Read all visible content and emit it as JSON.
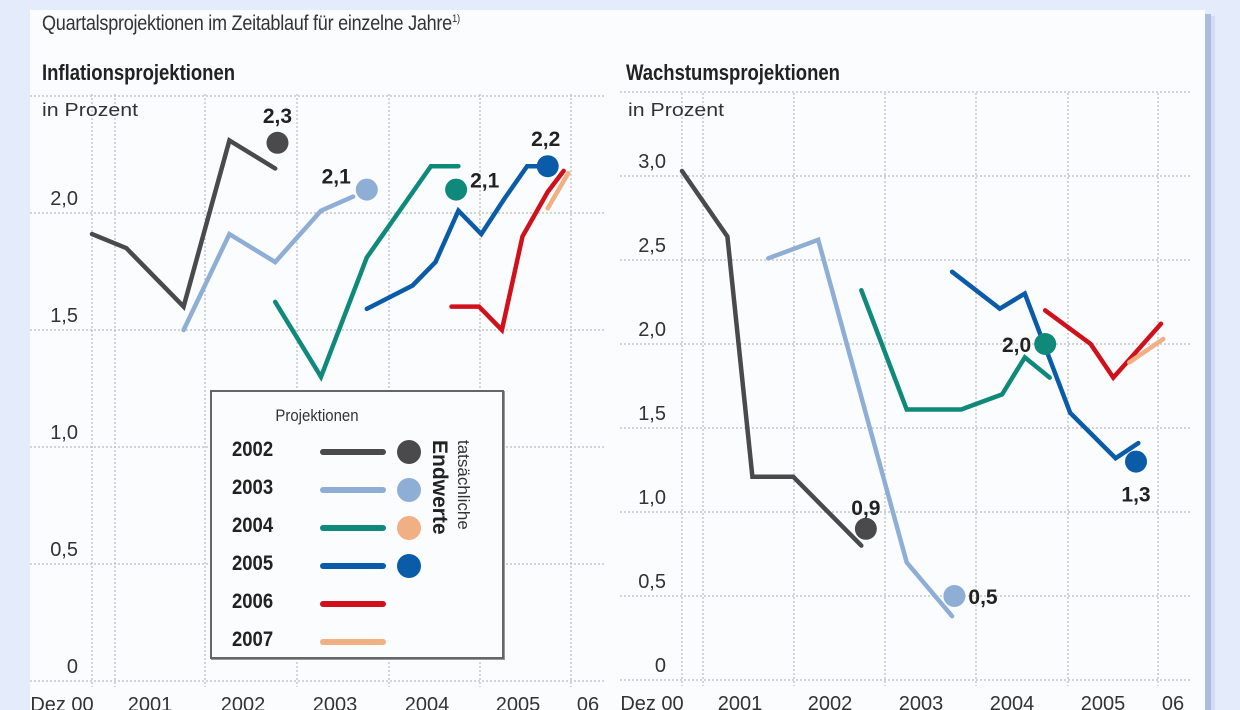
{
  "subtitle": "Quartalsprojektionen im Zeitablauf für einzelne Jahre",
  "subtitle_footnote": "1)",
  "colors": {
    "2002": "#4a4a4c",
    "2003": "#8eaed6",
    "2004": "#0f8a7a",
    "2005": "#0a5ca8",
    "2006": "#d0101a",
    "2007": "#f0b083",
    "grid": "#b8bcc4",
    "background": "#e4ecfb",
    "panel": "#fbfcfd"
  },
  "legend": {
    "title": "Projektionen",
    "vertical_label_1": "tatsächliche",
    "vertical_label_2": "Endwerte",
    "entries": [
      {
        "year": "2002",
        "line_color": "#4a4a4c",
        "dot_color": "#4a4a4c"
      },
      {
        "year": "2003",
        "line_color": "#8eaed6",
        "dot_color": "#8eaed6"
      },
      {
        "year": "2004",
        "line_color": "#0f8a7a",
        "dot_color": "#f0b083"
      },
      {
        "year": "2005",
        "line_color": "#0a5ca8",
        "dot_color": "#0a5ca8"
      },
      {
        "year": "2006",
        "line_color": "#d0101a",
        "dot_color": null
      },
      {
        "year": "2007",
        "line_color": "#f0b083",
        "dot_color": null
      }
    ]
  },
  "chart_data": [
    {
      "type": "line",
      "title": "Inflationsprojektionen",
      "ylabel": "in Prozent",
      "xlabel": "",
      "x_unit": "quarters since Dez 00",
      "x_ticks": [
        "Dez 00",
        "2001",
        "2002",
        "2003",
        "2004",
        "2005",
        "06"
      ],
      "y_ticks": [
        "0",
        "0,5",
        "1,0",
        "1,5",
        "2,0"
      ],
      "y_tick_values": [
        0,
        0.5,
        1.0,
        1.5,
        2.0
      ],
      "ylim": [
        0,
        2.5
      ],
      "grid": true,
      "series": [
        {
          "name": "2002",
          "color": "#4a4a4c",
          "x": [
            0,
            1.5,
            4,
            6,
            8
          ],
          "values": [
            1.91,
            1.85,
            1.6,
            2.31,
            2.19
          ],
          "actual": {
            "x": 8.1,
            "value": 2.3,
            "label": "2,3"
          }
        },
        {
          "name": "2003",
          "color": "#8eaed6",
          "x": [
            4,
            6,
            8,
            10,
            11.4
          ],
          "values": [
            1.5,
            1.91,
            1.79,
            2.01,
            2.07
          ],
          "actual": {
            "x": 12,
            "value": 2.1,
            "label": "2,1"
          }
        },
        {
          "name": "2004",
          "color": "#0f8a7a",
          "x": [
            8,
            10,
            12,
            14.8,
            16
          ],
          "values": [
            1.62,
            1.3,
            1.81,
            2.2,
            2.2
          ],
          "actual": {
            "x": 15.9,
            "value": 2.1,
            "label": "2,1"
          }
        },
        {
          "name": "2005",
          "color": "#0a5ca8",
          "x": [
            12,
            14,
            15,
            16,
            17,
            18,
            19,
            19.6
          ],
          "values": [
            1.59,
            1.69,
            1.79,
            2.01,
            1.91,
            2.06,
            2.2,
            2.2
          ],
          "actual": {
            "x": 19.9,
            "value": 2.2,
            "label": "2,2"
          }
        },
        {
          "name": "2006",
          "color": "#d0101a",
          "x": [
            15.7,
            16.9,
            17.9,
            18.8,
            19.9,
            20.6
          ],
          "values": [
            1.6,
            1.6,
            1.5,
            1.9,
            2.09,
            2.18
          ],
          "actual": null
        },
        {
          "name": "2007",
          "color": "#f0b083",
          "x": [
            19.9,
            20.8
          ],
          "values": [
            2.02,
            2.17
          ],
          "actual": null
        }
      ]
    },
    {
      "type": "line",
      "title": "Wachstumsprojektionen",
      "ylabel": "in Prozent",
      "xlabel": "",
      "x_unit": "quarters since Dez 00",
      "x_ticks": [
        "Dez 00",
        "2001",
        "2002",
        "2003",
        "2004",
        "2005",
        "06"
      ],
      "y_ticks": [
        "0",
        "0,5",
        "1,0",
        "1,5",
        "2,0",
        "2,5",
        "3,0"
      ],
      "y_tick_values": [
        0,
        0.5,
        1.0,
        1.5,
        2.0,
        2.5,
        3.0
      ],
      "ylim": [
        0,
        3.5
      ],
      "grid": true,
      "series": [
        {
          "name": "2002",
          "color": "#4a4a4c",
          "x": [
            0,
            2,
            3.1,
            4.9,
            7.9
          ],
          "values": [
            3.03,
            2.64,
            1.21,
            1.21,
            0.8
          ],
          "actual": {
            "x": 8.1,
            "value": 0.9,
            "label": "0,9"
          }
        },
        {
          "name": "2003",
          "color": "#8eaed6",
          "x": [
            3.8,
            6,
            9.9,
            11.9
          ],
          "values": [
            2.51,
            2.62,
            0.7,
            0.38
          ],
          "actual": {
            "x": 12,
            "value": 0.5,
            "label": "0,5"
          }
        },
        {
          "name": "2004",
          "color": "#0f8a7a",
          "x": [
            7.9,
            9.9,
            12.3,
            14.1,
            15.1,
            16.2
          ],
          "values": [
            2.32,
            1.61,
            1.61,
            1.7,
            1.92,
            1.8
          ],
          "actual": {
            "x": 16,
            "value": 2.0,
            "label": "2,0"
          }
        },
        {
          "name": "2005",
          "color": "#0a5ca8",
          "x": [
            11.9,
            14,
            15.1,
            17.1,
            19.1,
            20.1
          ],
          "values": [
            2.43,
            2.21,
            2.3,
            1.59,
            1.32,
            1.41
          ],
          "actual": {
            "x": 20,
            "value": 1.3,
            "label": "1,3"
          }
        },
        {
          "name": "2006",
          "color": "#d0101a",
          "x": [
            16,
            18,
            19,
            21.1
          ],
          "values": [
            2.2,
            2.0,
            1.8,
            2.12
          ],
          "actual": null
        },
        {
          "name": "2007",
          "color": "#f0b083",
          "x": [
            19.7,
            21.2
          ],
          "values": [
            1.89,
            2.03
          ],
          "actual": null
        }
      ]
    }
  ]
}
